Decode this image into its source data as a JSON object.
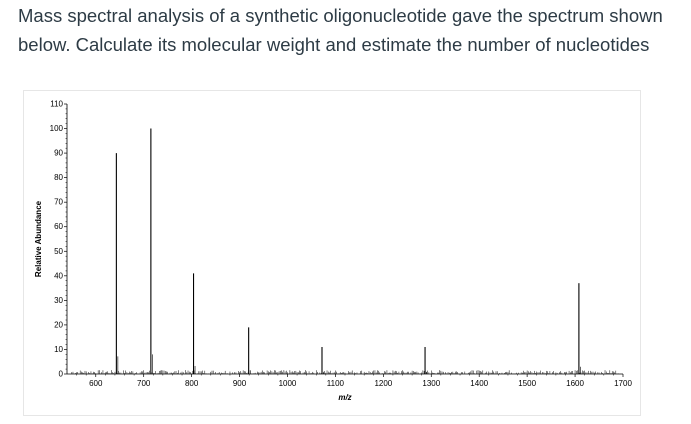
{
  "question": {
    "text": "Mass spectral analysis of a synthetic oligonucleotide gave the spectrum shown below. Calculate its molecular weight and estimate the number of nucleotides"
  },
  "chart_data": {
    "type": "bar",
    "title": "",
    "xlabel": "m/z",
    "ylabel": "Relative Abundance",
    "xlim": [
      540,
      1700
    ],
    "ylim": [
      0,
      110
    ],
    "xticks": [
      "600",
      "700",
      "800",
      "900",
      "1000",
      "1100",
      "1200",
      "1300",
      "1400",
      "1500",
      "1600",
      "1700"
    ],
    "yticks": [
      "0",
      "10",
      "20",
      "30",
      "40",
      "50",
      "60",
      "70",
      "80",
      "90",
      "100",
      "110"
    ],
    "grid": false,
    "series": [
      {
        "peaks": [
          {
            "x": 643,
            "y": 90
          },
          {
            "x": 715,
            "y": 100
          },
          {
            "x": 804,
            "y": 41
          },
          {
            "x": 919,
            "y": 19
          },
          {
            "x": 1072,
            "y": 11
          },
          {
            "x": 1287,
            "y": 11
          },
          {
            "x": 1608,
            "y": 37
          }
        ]
      }
    ]
  }
}
